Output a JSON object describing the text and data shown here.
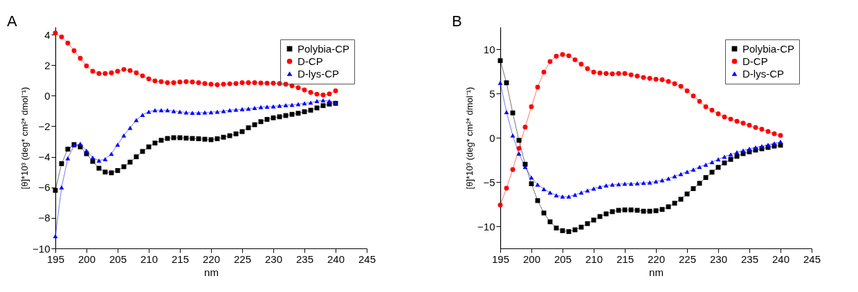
{
  "chart_data": [
    {
      "type": "line",
      "title": "A",
      "xlabel": "nm",
      "ylabel": "[θ]*10³ (deg* cm²* dmol⁻¹)",
      "xlim": [
        195,
        245
      ],
      "xticks": [
        195,
        200,
        205,
        210,
        215,
        220,
        225,
        230,
        235,
        240,
        245
      ],
      "ylim": [
        -10,
        4.5
      ],
      "yticks": [
        -10,
        -8,
        -6,
        -4,
        -2,
        0,
        2,
        4
      ],
      "grid": false,
      "legend": "top right",
      "x": [
        195,
        196,
        197,
        198,
        199,
        200,
        201,
        202,
        203,
        204,
        205,
        206,
        207,
        208,
        209,
        210,
        211,
        212,
        213,
        214,
        215,
        216,
        217,
        218,
        219,
        220,
        221,
        222,
        223,
        224,
        225,
        226,
        227,
        228,
        229,
        230,
        231,
        232,
        233,
        234,
        235,
        236,
        237,
        238,
        239,
        240
      ],
      "series": [
        {
          "name": "Polybia-CP",
          "color": "#000000",
          "marker": "square",
          "values": [
            -6.2,
            -4.45,
            -3.5,
            -3.2,
            -3.35,
            -3.8,
            -4.3,
            -4.75,
            -5.0,
            -5.05,
            -4.9,
            -4.65,
            -4.35,
            -4.0,
            -3.65,
            -3.35,
            -3.1,
            -2.92,
            -2.8,
            -2.75,
            -2.75,
            -2.78,
            -2.8,
            -2.82,
            -2.85,
            -2.88,
            -2.82,
            -2.72,
            -2.62,
            -2.5,
            -2.35,
            -2.1,
            -1.9,
            -1.7,
            -1.55,
            -1.45,
            -1.38,
            -1.3,
            -1.22,
            -1.15,
            -1.05,
            -0.95,
            -0.8,
            -0.65,
            -0.55,
            -0.5
          ]
        },
        {
          "name": "D-CP",
          "color": "#ff0000",
          "marker": "circle",
          "values": [
            4.1,
            3.85,
            3.45,
            2.95,
            2.45,
            1.95,
            1.6,
            1.45,
            1.45,
            1.5,
            1.6,
            1.72,
            1.65,
            1.5,
            1.3,
            1.1,
            0.97,
            0.92,
            0.85,
            0.85,
            0.9,
            0.92,
            0.9,
            0.85,
            0.8,
            0.75,
            0.72,
            0.75,
            0.78,
            0.8,
            0.85,
            0.85,
            0.85,
            0.83,
            0.82,
            0.82,
            0.8,
            0.75,
            0.65,
            0.52,
            0.38,
            0.22,
            0.1,
            0.05,
            0.12,
            0.32
          ]
        },
        {
          "name": "D-lys-CP",
          "color": "#0000ff",
          "marker": "triangle",
          "values": [
            -9.2,
            -6.0,
            -4.1,
            -3.25,
            -3.15,
            -3.6,
            -4.05,
            -4.25,
            -4.15,
            -3.8,
            -3.2,
            -2.6,
            -2.1,
            -1.6,
            -1.25,
            -1.05,
            -0.95,
            -0.95,
            -0.95,
            -1.0,
            -1.05,
            -1.1,
            -1.12,
            -1.12,
            -1.1,
            -1.08,
            -1.05,
            -1.0,
            -0.95,
            -0.92,
            -0.88,
            -0.85,
            -0.8,
            -0.75,
            -0.72,
            -0.7,
            -0.65,
            -0.62,
            -0.6,
            -0.55,
            -0.5,
            -0.45,
            -0.35,
            -0.3,
            -0.35,
            -0.45
          ]
        }
      ]
    },
    {
      "type": "line",
      "title": "B",
      "xlabel": "nm",
      "ylabel": "[θ]*10³ (deg* cm²* dmol⁻¹)",
      "xlim": [
        195,
        245
      ],
      "xticks": [
        195,
        200,
        205,
        210,
        215,
        220,
        225,
        230,
        235,
        240,
        245
      ],
      "ylim": [
        -12.5,
        12.5
      ],
      "yticks": [
        -10,
        -5,
        0,
        5,
        10
      ],
      "grid": false,
      "legend": "top right",
      "x": [
        195,
        196,
        197,
        198,
        199,
        200,
        201,
        202,
        203,
        204,
        205,
        206,
        207,
        208,
        209,
        210,
        211,
        212,
        213,
        214,
        215,
        216,
        217,
        218,
        219,
        220,
        221,
        222,
        223,
        224,
        225,
        226,
        227,
        228,
        229,
        230,
        231,
        232,
        233,
        234,
        235,
        236,
        237,
        238,
        239,
        240
      ],
      "series": [
        {
          "name": "Polybia-CP",
          "color": "#000000",
          "marker": "square",
          "values": [
            8.7,
            6.2,
            2.8,
            -0.3,
            -3.0,
            -5.2,
            -7.1,
            -8.5,
            -9.5,
            -10.2,
            -10.5,
            -10.6,
            -10.4,
            -10.1,
            -9.7,
            -9.3,
            -8.9,
            -8.6,
            -8.35,
            -8.2,
            -8.15,
            -8.15,
            -8.2,
            -8.3,
            -8.3,
            -8.25,
            -8.1,
            -7.8,
            -7.4,
            -6.95,
            -6.35,
            -5.75,
            -5.15,
            -4.5,
            -3.9,
            -3.35,
            -2.85,
            -2.45,
            -2.1,
            -1.8,
            -1.6,
            -1.4,
            -1.25,
            -1.1,
            -0.95,
            -0.85
          ]
        },
        {
          "name": "D-CP",
          "color": "#ff0000",
          "marker": "circle",
          "values": [
            -7.6,
            -5.7,
            -3.6,
            -1.2,
            1.2,
            3.5,
            5.7,
            7.4,
            8.6,
            9.2,
            9.4,
            9.25,
            8.8,
            8.3,
            7.8,
            7.4,
            7.3,
            7.25,
            7.2,
            7.25,
            7.25,
            7.1,
            6.95,
            6.8,
            6.7,
            6.6,
            6.55,
            6.35,
            6.1,
            5.8,
            5.3,
            4.7,
            4.1,
            3.5,
            3.1,
            2.7,
            2.35,
            2.1,
            1.85,
            1.65,
            1.4,
            1.15,
            0.95,
            0.7,
            0.45,
            0.25
          ]
        },
        {
          "name": "D-lys-CP",
          "color": "#0000ff",
          "marker": "triangle",
          "values": [
            6.2,
            2.9,
            0.25,
            -1.8,
            -3.3,
            -4.5,
            -5.3,
            -5.8,
            -6.2,
            -6.5,
            -6.65,
            -6.65,
            -6.45,
            -6.2,
            -5.95,
            -5.75,
            -5.55,
            -5.4,
            -5.3,
            -5.25,
            -5.2,
            -5.2,
            -5.15,
            -5.1,
            -5.05,
            -4.95,
            -4.8,
            -4.6,
            -4.35,
            -4.1,
            -3.85,
            -3.6,
            -3.3,
            -3.05,
            -2.75,
            -2.45,
            -2.15,
            -1.9,
            -1.65,
            -1.45,
            -1.25,
            -1.1,
            -0.95,
            -0.8,
            -0.65,
            -0.45
          ]
        }
      ]
    }
  ]
}
